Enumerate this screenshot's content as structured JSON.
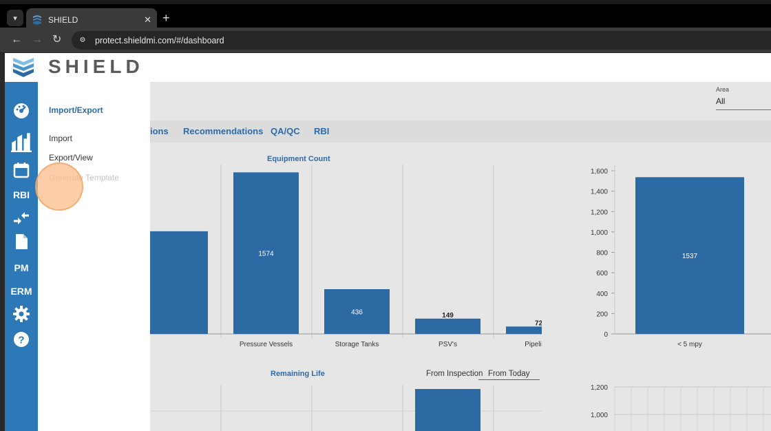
{
  "browser": {
    "tab_title": "SHIELD",
    "url": "protect.shieldmi.com/#/dashboard",
    "tab_close": "✕",
    "new_tab": "+"
  },
  "app": {
    "logo_text": "SHIELD"
  },
  "sidebar": {
    "items": [
      {
        "name": "dashboard-icon"
      },
      {
        "name": "facilities-icon"
      },
      {
        "name": "calendar-icon"
      },
      {
        "label": "RBI"
      },
      {
        "name": "import-export-icon"
      },
      {
        "name": "document-icon"
      },
      {
        "label": "PM"
      },
      {
        "label": "ERM"
      },
      {
        "name": "gear-icon"
      },
      {
        "name": "help-icon"
      }
    ]
  },
  "submenu": {
    "title": "Import/Export",
    "items": [
      "Import",
      "Export/View",
      "Generate Template"
    ]
  },
  "filter": {
    "label": "Area",
    "value": "All"
  },
  "tabs": [
    "ions",
    "Recommendations",
    "QA/QC",
    "RBI"
  ],
  "chart_data": [
    {
      "type": "bar",
      "title": "Equipment Count",
      "categories": [
        "",
        "Pressure Vessels",
        "Storage Tanks",
        "PSV's",
        "Pipelines"
      ],
      "values": [
        1000,
        1574,
        436,
        149,
        72
      ],
      "value_labels": [
        "",
        "1574",
        "436",
        "149",
        "72"
      ]
    },
    {
      "type": "bar",
      "categories": [
        "< 5 mpy"
      ],
      "values": [
        1537
      ],
      "ylim": [
        0,
        1600
      ],
      "yticks": [
        "0",
        "200",
        "400",
        "600",
        "800",
        "1,000",
        "1,200",
        "1,400",
        "1,600"
      ]
    },
    {
      "type": "bar",
      "title": "Remaining Life",
      "toggles": [
        "From Inspection",
        "From Today"
      ],
      "active_toggle": "From Today"
    },
    {
      "type": "bar",
      "yticks": [
        "1,200",
        "1,000",
        "800"
      ]
    }
  ],
  "colors": {
    "sidebar": "#2d78b7",
    "bar": "#2d6aa3",
    "accent": "#2d6ba8"
  }
}
